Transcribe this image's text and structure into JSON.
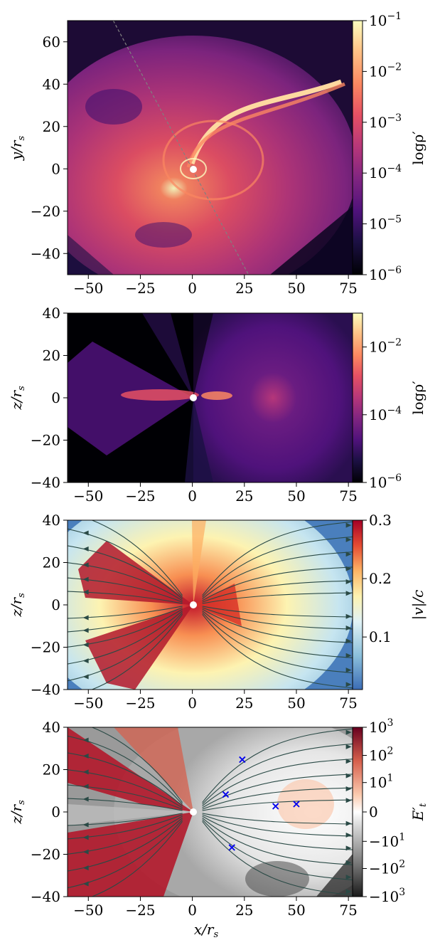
{
  "chart_data": [
    {
      "type": "heatmap",
      "panel": 1,
      "xlabel": "",
      "ylabel": "y/r",
      "ylabel_sub": "s",
      "xlim": [
        -60,
        77
      ],
      "ylim": [
        -50,
        70
      ],
      "xticks": [
        "−50",
        "−25",
        "0",
        "25",
        "50",
        "75"
      ],
      "xtick_values": [
        -50,
        -25,
        0,
        25,
        50,
        75
      ],
      "yticks": [
        "−40",
        "−20",
        "0",
        "20",
        "40",
        "60"
      ],
      "ytick_values": [
        -40,
        -20,
        0,
        20,
        40,
        60
      ],
      "colorbar": {
        "label": "logρ′",
        "scale": "log",
        "colormap": "magma",
        "ticks": [
          {
            "base": "10",
            "exp": "−1"
          },
          {
            "base": "10",
            "exp": "−2"
          },
          {
            "base": "10",
            "exp": "−3"
          },
          {
            "base": "10",
            "exp": "−4"
          },
          {
            "base": "10",
            "exp": "−5"
          },
          {
            "base": "10",
            "exp": "−6"
          }
        ],
        "tick_values": [
          0.1,
          0.01,
          0.001,
          0.0001,
          1e-05,
          1e-06
        ],
        "range": [
          1e-06,
          0.1
        ]
      },
      "features": {
        "stream_from": [
          68,
          40
        ],
        "stream_to": [
          3,
          2
        ],
        "dashed_line": [
          [
            -38,
            70
          ],
          [
            27,
            -50
          ]
        ]
      }
    },
    {
      "type": "heatmap",
      "panel": 2,
      "xlabel": "",
      "ylabel": "z/r",
      "ylabel_sub": "s",
      "xlim": [
        -60,
        77
      ],
      "ylim": [
        -40,
        40
      ],
      "xticks": [
        "−50",
        "−25",
        "0",
        "25",
        "50",
        "75"
      ],
      "xtick_values": [
        -50,
        -25,
        0,
        25,
        50,
        75
      ],
      "yticks": [
        "−40",
        "−20",
        "0",
        "20",
        "40"
      ],
      "ytick_values": [
        -40,
        -20,
        0,
        20,
        40
      ],
      "colorbar": {
        "label": "logρ′",
        "scale": "log",
        "colormap": "magma",
        "ticks": [
          {
            "base": "10",
            "exp": "−2"
          },
          {
            "base": "10",
            "exp": "−4"
          },
          {
            "base": "10",
            "exp": "−6"
          }
        ],
        "tick_values": [
          0.01,
          0.0001,
          1e-06
        ],
        "range": [
          1e-06,
          0.1
        ]
      }
    },
    {
      "type": "heatmap",
      "panel": 3,
      "xlabel": "",
      "ylabel": "z/r",
      "ylabel_sub": "s",
      "xlim": [
        -60,
        77
      ],
      "ylim": [
        -40,
        40
      ],
      "xticks": [
        "−50",
        "−25",
        "0",
        "25",
        "50",
        "75"
      ],
      "xtick_values": [
        -50,
        -25,
        0,
        25,
        50,
        75
      ],
      "yticks": [
        "−40",
        "−20",
        "0",
        "20",
        "40"
      ],
      "ytick_values": [
        -40,
        -20,
        0,
        20,
        40
      ],
      "colorbar": {
        "label": "|v|/c",
        "scale": "linear",
        "colormap": "RdYlBu_r",
        "ticks": [
          {
            "base": "0.3",
            "exp": ""
          },
          {
            "base": "0.2",
            "exp": ""
          },
          {
            "base": "0.1",
            "exp": ""
          }
        ],
        "tick_values": [
          0.3,
          0.2,
          0.1
        ],
        "range": [
          0.01,
          0.3
        ]
      },
      "streamlines": true
    },
    {
      "type": "heatmap",
      "panel": 4,
      "xlabel": "x/r",
      "xlabel_sub": "s",
      "ylabel": "z/r",
      "ylabel_sub": "s",
      "xlim": [
        -60,
        77
      ],
      "ylim": [
        -40,
        40
      ],
      "xticks": [
        "−50",
        "−25",
        "0",
        "25",
        "50",
        "75"
      ],
      "xtick_values": [
        -50,
        -25,
        0,
        25,
        50,
        75
      ],
      "yticks": [
        "−40",
        "−20",
        "0",
        "20",
        "40"
      ],
      "ytick_values": [
        -40,
        -20,
        0,
        20,
        40
      ],
      "colorbar": {
        "label": "E′",
        "label_sub": "t",
        "scale": "symlog",
        "colormap": "RdGy_r",
        "ticks": [
          {
            "base": "10",
            "exp": "3"
          },
          {
            "base": "10",
            "exp": "2"
          },
          {
            "base": "10",
            "exp": "1"
          },
          {
            "base": "0",
            "exp": ""
          },
          {
            "base": "−10",
            "exp": "1"
          },
          {
            "base": "−10",
            "exp": "2"
          },
          {
            "base": "−10",
            "exp": "3"
          }
        ],
        "tick_values": [
          1000,
          100,
          10,
          0,
          -10,
          -100,
          -1000
        ],
        "range": [
          -1000,
          1000
        ]
      },
      "streamlines": true,
      "markers": [
        {
          "x": 24,
          "y": 25
        },
        {
          "x": 16,
          "y": 8.5
        },
        {
          "x": 40,
          "y": 3
        },
        {
          "x": 50,
          "y": 4
        },
        {
          "x": 19,
          "y": -16.5
        }
      ],
      "marker_color": "#0000ee",
      "marker_symbol": "×"
    }
  ]
}
